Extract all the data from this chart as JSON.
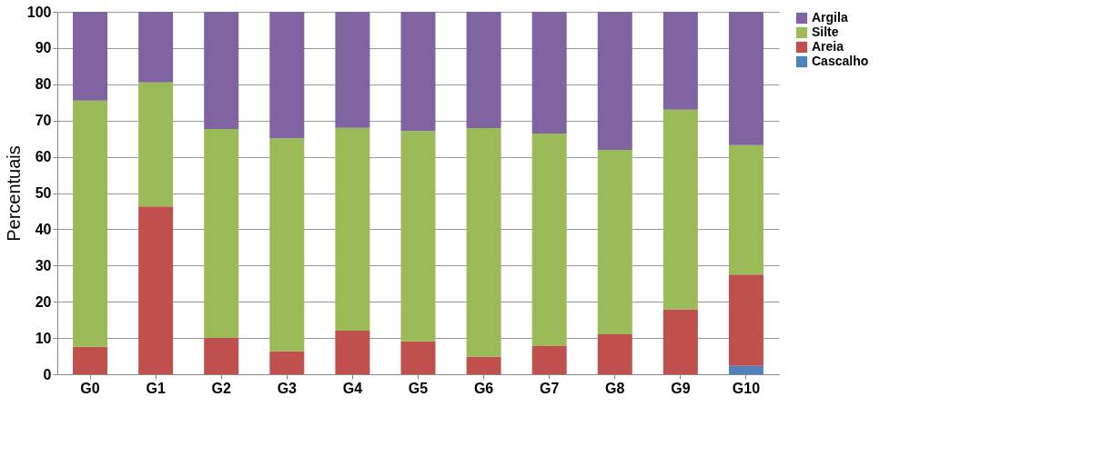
{
  "chart_data": {
    "type": "bar",
    "stacked": true,
    "ylabel": "Percentuais",
    "categories": [
      "G0",
      "G1",
      "G2",
      "G3",
      "G4",
      "G5",
      "G6",
      "G7",
      "G8",
      "G9",
      "G10"
    ],
    "series": [
      {
        "name": "Cascalho",
        "color": "#4f81bd",
        "values": [
          0,
          0,
          0,
          0,
          0,
          0,
          0,
          0,
          0,
          0,
          2.3
        ]
      },
      {
        "name": "Areia",
        "color": "#c0504d",
        "values": [
          7.6,
          46.3,
          10.0,
          6.3,
          12.0,
          9.1,
          4.9,
          7.8,
          11.0,
          17.9,
          25.2
        ]
      },
      {
        "name": "Silte",
        "color": "#9bbb59",
        "values": [
          67.9,
          34.2,
          57.7,
          58.8,
          56.0,
          58.0,
          63.0,
          58.6,
          50.9,
          55.1,
          35.7
        ]
      },
      {
        "name": "Argila",
        "color": "#8064a2",
        "values": [
          24.5,
          19.5,
          32.3,
          34.9,
          32.0,
          32.9,
          32.1,
          33.6,
          38.1,
          27.0,
          36.8
        ]
      }
    ],
    "ylim": [
      0,
      100
    ],
    "yticks": [
      0,
      10,
      20,
      30,
      40,
      50,
      60,
      70,
      80,
      90,
      100
    ],
    "grid": "y",
    "legend": "right"
  }
}
